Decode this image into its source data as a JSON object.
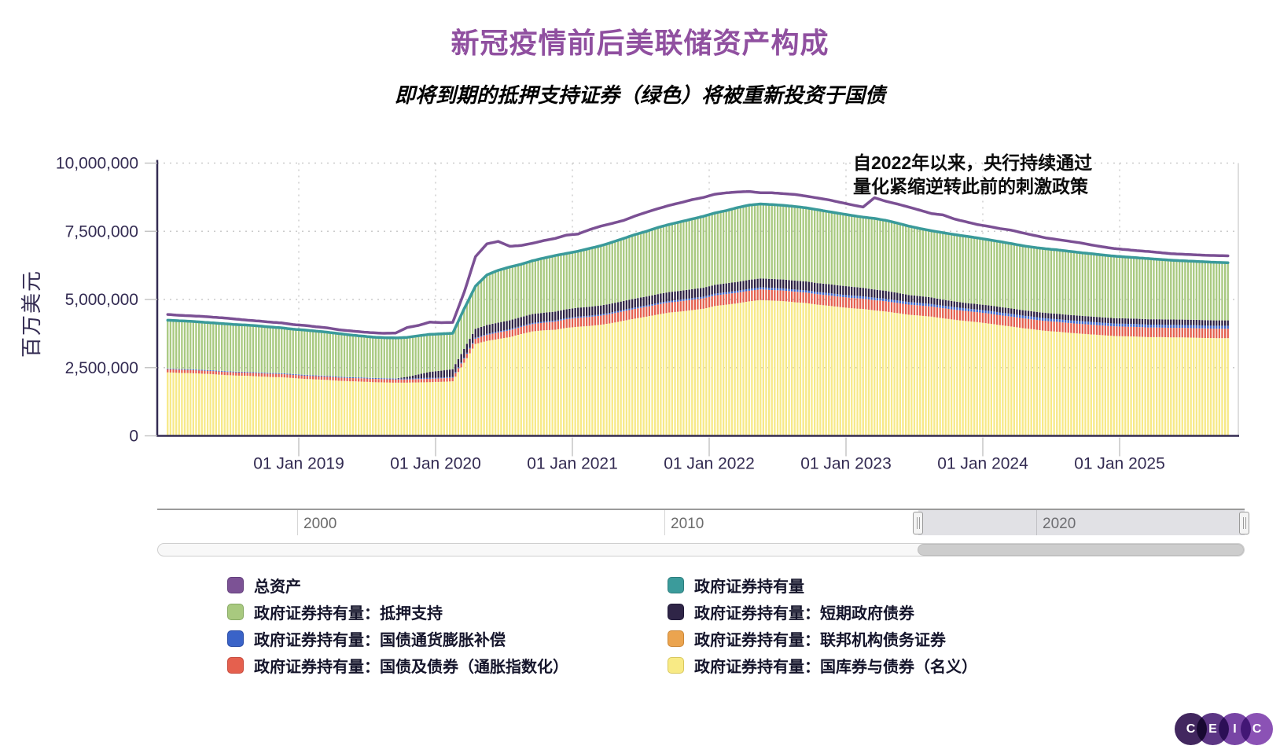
{
  "title": "新冠疫情前后美联储资产构成",
  "subtitle": "即将到期的抵押支持证券（绿色）将被重新投资于国债",
  "annotation": {
    "line1": "自2022年以来，央行持续通过",
    "line2": "量化紧缩逆转此前的刺激政策"
  },
  "y_axis": {
    "title": "百万美元",
    "ticks": [
      {
        "value": 0,
        "label": "0"
      },
      {
        "value": 2500000,
        "label": "2,500,000"
      },
      {
        "value": 5000000,
        "label": "5,000,000"
      },
      {
        "value": 7500000,
        "label": "7,500,000"
      },
      {
        "value": 10000000,
        "label": "10,000,000"
      }
    ]
  },
  "x_axis": {
    "ticks": [
      {
        "year": 2019,
        "label": "01 Jan 2019"
      },
      {
        "year": 2020,
        "label": "01 Jan 2020"
      },
      {
        "year": 2021,
        "label": "01 Jan 2021"
      },
      {
        "year": 2022,
        "label": "01 Jan 2022"
      },
      {
        "year": 2023,
        "label": "01 Jan 2023"
      },
      {
        "year": 2024,
        "label": "01 Jan 2024"
      },
      {
        "year": 2025,
        "label": "01 Jan 2025"
      }
    ]
  },
  "navigator": {
    "labels": [
      "2000",
      "2010",
      "2020"
    ]
  },
  "legend": {
    "columns": [
      [
        {
          "label": "总资产",
          "color": "#7c5295",
          "border": "#63407c"
        },
        {
          "label": "政府证券持有量：抵押支持",
          "color": "#a8c97f",
          "border": "#87a964"
        },
        {
          "label": "政府证券持有量：国债通货膨胀补偿",
          "color": "#3a63c8",
          "border": "#2b4da6"
        },
        {
          "label": "政府证券持有量：国债及债券（通胀指数化）",
          "color": "#e5604e",
          "border": "#c74b3e"
        }
      ],
      [
        {
          "label": "政府证券持有量",
          "color": "#3b9b9b",
          "border": "#2e7d7d"
        },
        {
          "label": "政府证券持有量：短期政府债券",
          "color": "#2f2547",
          "border": "#201938"
        },
        {
          "label": "政府证券持有量：联邦机构债务证券",
          "color": "#eba44f",
          "border": "#cc8838"
        },
        {
          "label": "政府证券持有量：国库券与债券（名义）",
          "color": "#f8ea85",
          "border": "#d8c75e"
        }
      ]
    ]
  },
  "logo": {
    "letters": [
      "C",
      "E",
      "I",
      "C"
    ],
    "colors": [
      "#42275f",
      "#5c3684",
      "#7845a5",
      "#8b52b5"
    ]
  },
  "chart_data": {
    "type": "combo-stacked-column-line",
    "title": "新冠疫情前后美联储资产构成",
    "ylabel": "百万美元",
    "unit": "百万美元",
    "ylim": [
      0,
      10000000
    ],
    "grid": true,
    "legend_position": "bottom",
    "x_start": {
      "year": 2018,
      "month": 1
    },
    "x_interval": "monthly",
    "series": [
      {
        "name": "总资产",
        "type": "line",
        "color": "#7b5094",
        "values": [
          4450000,
          4420000,
          4400000,
          4380000,
          4350000,
          4320000,
          4280000,
          4240000,
          4210000,
          4170000,
          4140000,
          4080000,
          4050000,
          4000000,
          3960000,
          3890000,
          3850000,
          3810000,
          3780000,
          3760000,
          3770000,
          3970000,
          4050000,
          4170000,
          4150000,
          4160000,
          5250000,
          6570000,
          7040000,
          7130000,
          6950000,
          6980000,
          7060000,
          7160000,
          7240000,
          7360000,
          7400000,
          7560000,
          7690000,
          7790000,
          7900000,
          8060000,
          8200000,
          8330000,
          8450000,
          8550000,
          8660000,
          8740000,
          8860000,
          8910000,
          8940000,
          8960000,
          8910000,
          8910000,
          8880000,
          8850000,
          8790000,
          8720000,
          8650000,
          8560000,
          8470000,
          8390000,
          8730000,
          8600000,
          8500000,
          8390000,
          8270000,
          8150000,
          8100000,
          7950000,
          7850000,
          7750000,
          7680000,
          7600000,
          7540000,
          7440000,
          7350000,
          7260000,
          7200000,
          7140000,
          7080000,
          7000000,
          6930000,
          6870000,
          6830000,
          6790000,
          6760000,
          6720000,
          6680000,
          6660000,
          6640000,
          6620000,
          6610000,
          6600000
        ]
      },
      {
        "name": "政府证券持有量",
        "type": "line",
        "color": "#3a9a9a",
        "values": [
          4240000,
          4220000,
          4200000,
          4170000,
          4140000,
          4110000,
          4080000,
          4060000,
          4030000,
          3990000,
          3960000,
          3910000,
          3880000,
          3840000,
          3800000,
          3750000,
          3700000,
          3660000,
          3620000,
          3600000,
          3590000,
          3610000,
          3670000,
          3720000,
          3740000,
          3760000,
          4650000,
          5490000,
          5900000,
          6070000,
          6190000,
          6290000,
          6420000,
          6520000,
          6610000,
          6690000,
          6770000,
          6870000,
          6970000,
          7100000,
          7240000,
          7380000,
          7500000,
          7640000,
          7750000,
          7850000,
          7950000,
          8050000,
          8170000,
          8260000,
          8370000,
          8460000,
          8500000,
          8480000,
          8450000,
          8410000,
          8360000,
          8290000,
          8220000,
          8150000,
          8080000,
          8020000,
          7970000,
          7900000,
          7800000,
          7690000,
          7600000,
          7520000,
          7450000,
          7380000,
          7320000,
          7260000,
          7190000,
          7120000,
          7050000,
          6970000,
          6910000,
          6860000,
          6820000,
          6770000,
          6720000,
          6680000,
          6630000,
          6590000,
          6560000,
          6530000,
          6500000,
          6470000,
          6440000,
          6420000,
          6400000,
          6380000,
          6360000,
          6350000
        ]
      },
      {
        "name": "政府证券持有量：国库券与债券（名义）",
        "type": "column",
        "stack_order": 1,
        "color": "#f7e987",
        "values": [
          2330000,
          2310000,
          2300000,
          2280000,
          2260000,
          2230000,
          2210000,
          2200000,
          2180000,
          2160000,
          2150000,
          2120000,
          2090000,
          2070000,
          2050000,
          2020000,
          2000000,
          1990000,
          1970000,
          1960000,
          1950000,
          1950000,
          1960000,
          1970000,
          1980000,
          2000000,
          2680000,
          3370000,
          3480000,
          3550000,
          3620000,
          3730000,
          3830000,
          3870000,
          3890000,
          3960000,
          4000000,
          4030000,
          4070000,
          4140000,
          4220000,
          4300000,
          4370000,
          4450000,
          4520000,
          4560000,
          4610000,
          4660000,
          4760000,
          4810000,
          4860000,
          4930000,
          4980000,
          4960000,
          4940000,
          4900000,
          4870000,
          4810000,
          4770000,
          4720000,
          4680000,
          4650000,
          4600000,
          4560000,
          4500000,
          4440000,
          4410000,
          4370000,
          4310000,
          4260000,
          4210000,
          4170000,
          4120000,
          4060000,
          4010000,
          3950000,
          3900000,
          3850000,
          3820000,
          3780000,
          3750000,
          3720000,
          3690000,
          3660000,
          3650000,
          3640000,
          3620000,
          3620000,
          3610000,
          3610000,
          3600000,
          3590000,
          3580000,
          3580000
        ]
      },
      {
        "name": "政府证券持有量：国债及债券（通胀指数化）",
        "type": "column",
        "stack_order": 2,
        "color": "#e5604e",
        "values": [
          114000,
          114000,
          115000,
          115000,
          115000,
          116000,
          116000,
          116000,
          117000,
          117000,
          117000,
          118000,
          118000,
          118000,
          119000,
          119000,
          119000,
          120000,
          120000,
          120000,
          121000,
          121000,
          122000,
          123000,
          127000,
          130000,
          150000,
          190000,
          220000,
          240000,
          250000,
          260000,
          270000,
          280000,
          300000,
          318000,
          325000,
          330000,
          335000,
          340000,
          350000,
          355000,
          360000,
          365000,
          370000,
          375000,
          380000,
          384000,
          387000,
          388000,
          390000,
          390000,
          389000,
          388000,
          387000,
          386000,
          384000,
          382000,
          380000,
          378000,
          377000,
          376000,
          375000,
          374000,
          373000,
          372000,
          371000,
          370000,
          369000,
          368000,
          367000,
          366000,
          365000,
          364000,
          363000,
          362000,
          361000,
          360000,
          359000,
          358000,
          357000,
          356000,
          355000,
          354000,
          353000,
          352000,
          351000,
          350000,
          350000,
          349000,
          348000,
          348000,
          347000,
          347000
        ]
      },
      {
        "name": "政府证券持有量：国债通货膨胀补偿",
        "type": "column",
        "stack_order": 3,
        "color": "#3a63c8",
        "values": [
          24000,
          24000,
          25000,
          25000,
          25000,
          26000,
          26000,
          26000,
          27000,
          27000,
          27000,
          28000,
          28000,
          28000,
          29000,
          29000,
          29000,
          30000,
          30000,
          30000,
          31000,
          31000,
          32000,
          32000,
          33000,
          33000,
          34000,
          35000,
          36000,
          37000,
          38000,
          38000,
          39000,
          39000,
          40000,
          40000,
          45000,
          46000,
          47000,
          49000,
          50000,
          52000,
          53000,
          55000,
          56000,
          58000,
          59000,
          60000,
          65000,
          68000,
          70000,
          72000,
          75000,
          77000,
          78000,
          79000,
          80000,
          82000,
          84000,
          85000,
          90000,
          90000,
          90000,
          91000,
          91000,
          92000,
          92000,
          93000,
          93000,
          94000,
          94000,
          94000,
          100000,
          100000,
          100000,
          100000,
          101000,
          101000,
          102000,
          102000,
          103000,
          104000,
          104000,
          105000,
          107000,
          107000,
          108000,
          108000,
          109000,
          109000,
          110000,
          110000,
          110000,
          110000
        ]
      },
      {
        "name": "政府证券持有量：短期政府债券",
        "type": "column",
        "stack_order": 4,
        "color": "#2e2245",
        "values": [
          3000,
          3000,
          3000,
          3000,
          3000,
          3000,
          3000,
          3000,
          3000,
          3000,
          3000,
          3000,
          3000,
          3000,
          3000,
          3000,
          3000,
          3000,
          3000,
          3000,
          3000,
          60000,
          140000,
          220000,
          250000,
          280000,
          326000,
          326000,
          326000,
          326000,
          326000,
          326000,
          326000,
          326000,
          326000,
          326000,
          326000,
          326000,
          326000,
          326000,
          326000,
          326000,
          326000,
          326000,
          326000,
          326000,
          326000,
          326000,
          326000,
          326000,
          326000,
          326000,
          326000,
          326000,
          326000,
          326000,
          326000,
          326000,
          326000,
          326000,
          320000,
          310000,
          300000,
          290000,
          280000,
          260000,
          250000,
          240000,
          220000,
          210000,
          200000,
          200000,
          200000,
          200000,
          195000,
          195000,
          195000,
          195000,
          195000,
          195000,
          195000,
          195000,
          195000,
          195000,
          195000,
          195000,
          195000,
          195000,
          195000,
          195000,
          195000,
          195000,
          195000,
          195000
        ]
      },
      {
        "name": "政府证券持有量：联邦机构债务证券",
        "type": "column",
        "stack_order": 5,
        "color": "#eba44f",
        "values": [
          2400,
          2400,
          2400,
          2400,
          2400,
          2400,
          2400,
          2400,
          2400,
          2400,
          2400,
          2400,
          2400,
          2400,
          2400,
          2400,
          2400,
          2400,
          2400,
          2400,
          2400,
          2400,
          2400,
          2400,
          2400,
          2400,
          2400,
          2400,
          2400,
          2400,
          2400,
          2400,
          2400,
          2400,
          2400,
          2400,
          2400,
          2400,
          2400,
          2400,
          2400,
          2400,
          2400,
          2400,
          2400,
          2400,
          2400,
          2400,
          2400,
          2400,
          2400,
          2400,
          2400,
          2400,
          2400,
          2400,
          2400,
          2400,
          2400,
          2400,
          2400,
          2400,
          2400,
          2400,
          2400,
          2400,
          2400,
          2400,
          2400,
          2400,
          2400,
          2400,
          2400,
          2400,
          2400,
          2400,
          2400,
          2400,
          2400,
          2400,
          2400,
          2400,
          2400,
          2400,
          2400,
          2400,
          2400,
          2400,
          2400,
          2400,
          2400,
          2400,
          2400,
          2400
        ]
      },
      {
        "name": "政府证券持有量：抵押支持",
        "type": "column",
        "stack_order": 6,
        "color": "#a8c97f",
        "values": [
          1770000,
          1760000,
          1760000,
          1750000,
          1740000,
          1730000,
          1720000,
          1710000,
          1700000,
          1680000,
          1660000,
          1640000,
          1620000,
          1610000,
          1590000,
          1570000,
          1550000,
          1530000,
          1520000,
          1500000,
          1470000,
          1450000,
          1430000,
          1420000,
          1400000,
          1370000,
          1460000,
          1570000,
          1840000,
          1920000,
          1950000,
          1930000,
          1950000,
          2000000,
          2050000,
          2040000,
          2080000,
          2180000,
          2190000,
          2230000,
          2280000,
          2350000,
          2390000,
          2450000,
          2480000,
          2520000,
          2570000,
          2620000,
          2660000,
          2690000,
          2720000,
          2740000,
          2730000,
          2710000,
          2720000,
          2710000,
          2700000,
          2680000,
          2660000,
          2640000,
          2620000,
          2620000,
          2600000,
          2580000,
          2550000,
          2520000,
          2500000,
          2480000,
          2460000,
          2450000,
          2440000,
          2430000,
          2410000,
          2390000,
          2380000,
          2360000,
          2350000,
          2350000,
          2330000,
          2320000,
          2310000,
          2290000,
          2280000,
          2270000,
          2250000,
          2240000,
          2220000,
          2200000,
          2180000,
          2160000,
          2150000,
          2140000,
          2130000,
          2120000
        ]
      }
    ]
  }
}
